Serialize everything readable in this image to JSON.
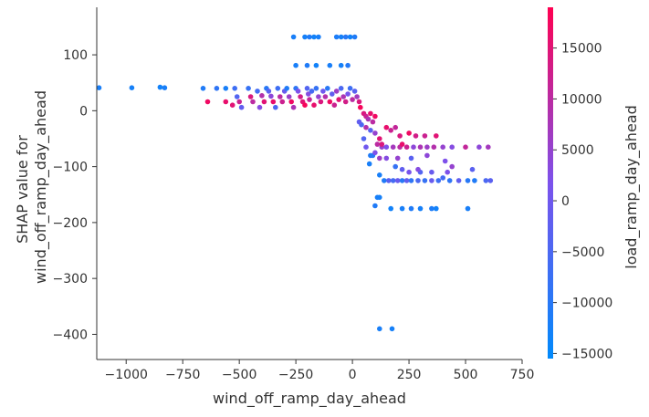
{
  "chart_data": {
    "type": "scatter",
    "title": "",
    "xlabel": "wind_off_ramp_day_ahead",
    "ylabel_lines": [
      "SHAP value for",
      "wind_off_ramp_day_ahead"
    ],
    "xlim": [
      -1130,
      750
    ],
    "ylim": [
      -445,
      185
    ],
    "xticks": [
      -1000,
      -750,
      -500,
      -250,
      0,
      250,
      500,
      750
    ],
    "xtick_labels": [
      "−1000",
      "−750",
      "−500",
      "−250",
      "0",
      "250",
      "500",
      "750"
    ],
    "yticks": [
      100,
      0,
      -100,
      -200,
      -300,
      -400
    ],
    "ytick_labels": [
      "100",
      "0",
      "−100",
      "−200",
      "−300",
      "−400"
    ],
    "grid": false,
    "colorbar": {
      "label": "load_ramp_day_ahead",
      "range": [
        -15500,
        19000
      ],
      "ticks": [
        15000,
        10000,
        5000,
        0,
        -5000,
        -10000,
        -15000
      ],
      "tick_labels": [
        "15000",
        "10000",
        "5000",
        "0",
        "−5000",
        "−10000",
        "−15000"
      ],
      "colors": [
        "#008afb",
        "#7c52ec",
        "#ff0051"
      ]
    },
    "points": [
      [
        -1120,
        41,
        -12000
      ],
      [
        -975,
        41,
        -12500
      ],
      [
        -850,
        42,
        -13000
      ],
      [
        -830,
        41,
        -12000
      ],
      [
        -660,
        40,
        -11000
      ],
      [
        -640,
        16,
        17000
      ],
      [
        -600,
        40,
        -9000
      ],
      [
        -560,
        40,
        -12000
      ],
      [
        -560,
        16,
        16000
      ],
      [
        -530,
        10,
        15000
      ],
      [
        -520,
        40,
        -7000
      ],
      [
        -510,
        25,
        -4000
      ],
      [
        -500,
        16,
        12000
      ],
      [
        -490,
        6,
        -2000
      ],
      [
        -460,
        40,
        -8000
      ],
      [
        -450,
        25,
        14000
      ],
      [
        -440,
        16,
        10000
      ],
      [
        -420,
        35,
        -6000
      ],
      [
        -410,
        6,
        3000
      ],
      [
        -400,
        27,
        9000
      ],
      [
        -390,
        16,
        15000
      ],
      [
        -380,
        40,
        -10000
      ],
      [
        -370,
        35,
        -3000
      ],
      [
        -360,
        26,
        4000
      ],
      [
        -350,
        16,
        16000
      ],
      [
        -340,
        6,
        -5000
      ],
      [
        -330,
        40,
        -7000
      ],
      [
        -320,
        25,
        10000
      ],
      [
        -310,
        16,
        12000
      ],
      [
        -300,
        35,
        -1000
      ],
      [
        -290,
        40,
        -11000
      ],
      [
        -280,
        25,
        6000
      ],
      [
        -270,
        16,
        17000
      ],
      [
        -260,
        6,
        8000
      ],
      [
        -250,
        40,
        -9000
      ],
      [
        -240,
        35,
        2000
      ],
      [
        -230,
        25,
        13000
      ],
      [
        -220,
        16,
        15000
      ],
      [
        -210,
        10,
        18000
      ],
      [
        -200,
        40,
        -4000
      ],
      [
        -195,
        30,
        3000
      ],
      [
        -190,
        20,
        11000
      ],
      [
        -180,
        35,
        -6000
      ],
      [
        -170,
        10,
        16000
      ],
      [
        -160,
        40,
        -8000
      ],
      [
        -150,
        25,
        5000
      ],
      [
        -140,
        16,
        14000
      ],
      [
        -130,
        35,
        0
      ],
      [
        -120,
        25,
        9000
      ],
      [
        -110,
        40,
        -10000
      ],
      [
        -100,
        16,
        17000
      ],
      [
        -90,
        30,
        -2000
      ],
      [
        -80,
        10,
        12000
      ],
      [
        -70,
        35,
        6000
      ],
      [
        -60,
        20,
        15000
      ],
      [
        -50,
        40,
        -5000
      ],
      [
        -40,
        25,
        8000
      ],
      [
        -30,
        16,
        13000
      ],
      [
        -20,
        30,
        1000
      ],
      [
        -10,
        40,
        -7000
      ],
      [
        0,
        20,
        10000
      ],
      [
        10,
        35,
        -3000
      ],
      [
        20,
        25,
        7000
      ],
      [
        30,
        16,
        14000
      ],
      [
        35,
        6,
        18000
      ],
      [
        -260,
        132,
        -12000
      ],
      [
        -210,
        132,
        -12500
      ],
      [
        -190,
        132,
        -11000
      ],
      [
        -170,
        132,
        -13000
      ],
      [
        -150,
        132,
        -12000
      ],
      [
        -70,
        132,
        -11500
      ],
      [
        -50,
        132,
        -12500
      ],
      [
        -30,
        132,
        -10000
      ],
      [
        -10,
        132,
        -13000
      ],
      [
        10,
        132,
        -11000
      ],
      [
        -250,
        81,
        -12000
      ],
      [
        -200,
        81,
        -11000
      ],
      [
        -160,
        81,
        -13000
      ],
      [
        -100,
        81,
        -12000
      ],
      [
        -50,
        81,
        -12500
      ],
      [
        -20,
        81,
        -10500
      ],
      [
        50,
        -5,
        14000
      ],
      [
        60,
        -10,
        12000
      ],
      [
        70,
        -15,
        8000
      ],
      [
        80,
        -5,
        16000
      ],
      [
        90,
        -20,
        10000
      ],
      [
        100,
        -10,
        17000
      ],
      [
        60,
        -30,
        9000
      ],
      [
        80,
        -35,
        -3000
      ],
      [
        100,
        -40,
        5000
      ],
      [
        120,
        -50,
        15000
      ],
      [
        40,
        -25,
        -5000
      ],
      [
        30,
        -20,
        -2000
      ],
      [
        150,
        -30,
        16000
      ],
      [
        170,
        -35,
        12000
      ],
      [
        190,
        -30,
        11000
      ],
      [
        210,
        -45,
        14000
      ],
      [
        250,
        -40,
        17000
      ],
      [
        280,
        -45,
        13000
      ],
      [
        320,
        -45,
        12000
      ],
      [
        370,
        -45,
        15000
      ],
      [
        110,
        -60,
        10000
      ],
      [
        130,
        -65,
        5000
      ],
      [
        150,
        -65,
        2000
      ],
      [
        180,
        -65,
        7000
      ],
      [
        210,
        -65,
        10000
      ],
      [
        240,
        -65,
        12000
      ],
      [
        270,
        -65,
        4000
      ],
      [
        300,
        -65,
        8000
      ],
      [
        330,
        -65,
        6000
      ],
      [
        360,
        -65,
        9000
      ],
      [
        400,
        -65,
        5000
      ],
      [
        440,
        -65,
        3000
      ],
      [
        500,
        -65,
        11000
      ],
      [
        560,
        -65,
        4000
      ],
      [
        600,
        -65,
        7000
      ],
      [
        130,
        -60,
        14000
      ],
      [
        220,
        -60,
        16000
      ],
      [
        50,
        -50,
        -4000
      ],
      [
        60,
        -65,
        0
      ],
      [
        80,
        -80,
        -11000
      ],
      [
        75,
        -95,
        -12000
      ],
      [
        90,
        -80,
        -10000
      ],
      [
        100,
        -75,
        2000
      ],
      [
        120,
        -85,
        6000
      ],
      [
        150,
        -85,
        3000
      ],
      [
        200,
        -85,
        5000
      ],
      [
        260,
        -85,
        -3000
      ],
      [
        330,
        -80,
        4000
      ],
      [
        410,
        -90,
        2000
      ],
      [
        190,
        -100,
        -8000
      ],
      [
        220,
        -105,
        -2000
      ],
      [
        250,
        -110,
        1000
      ],
      [
        300,
        -110,
        -4000
      ],
      [
        350,
        -110,
        -1000
      ],
      [
        420,
        -110,
        2000
      ],
      [
        440,
        -100,
        5000
      ],
      [
        530,
        -105,
        -3000
      ],
      [
        290,
        -105,
        3000
      ],
      [
        120,
        -115,
        -12000
      ],
      [
        140,
        -125,
        -11000
      ],
      [
        160,
        -125,
        -3000
      ],
      [
        180,
        -125,
        -6000
      ],
      [
        200,
        -125,
        -1000
      ],
      [
        220,
        -125,
        -10000
      ],
      [
        240,
        -125,
        -2000
      ],
      [
        260,
        -125,
        -9000
      ],
      [
        290,
        -125,
        -5000
      ],
      [
        320,
        -125,
        -8000
      ],
      [
        350,
        -125,
        -1000
      ],
      [
        380,
        -125,
        -7000
      ],
      [
        430,
        -125,
        -9000
      ],
      [
        470,
        -125,
        -2000
      ],
      [
        510,
        -125,
        -10000
      ],
      [
        540,
        -125,
        -11000
      ],
      [
        590,
        -125,
        -5000
      ],
      [
        610,
        -125,
        -3000
      ],
      [
        400,
        -120,
        -6000
      ],
      [
        110,
        -155,
        -12000
      ],
      [
        120,
        -155,
        -12500
      ],
      [
        100,
        -170,
        -11000
      ],
      [
        170,
        -175,
        -13000
      ],
      [
        220,
        -175,
        -12000
      ],
      [
        260,
        -175,
        -11000
      ],
      [
        300,
        -175,
        -12500
      ],
      [
        350,
        -175,
        -11500
      ],
      [
        370,
        -175,
        -13000
      ],
      [
        510,
        -175,
        -12000
      ],
      [
        120,
        -390,
        -12000
      ],
      [
        175,
        -390,
        -12500
      ]
    ]
  }
}
